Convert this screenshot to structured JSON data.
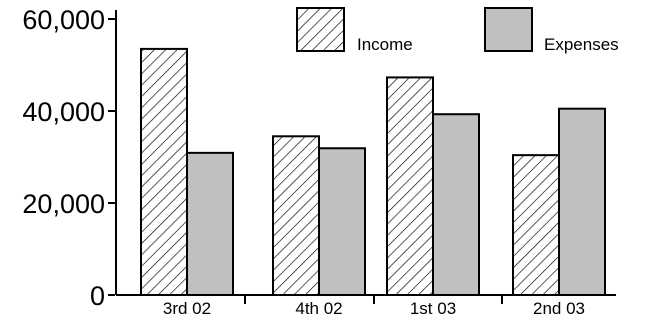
{
  "chart_data": {
    "type": "bar",
    "categories": [
      "3rd 02",
      "4th 02",
      "1st 03",
      "2nd 03"
    ],
    "series": [
      {
        "name": "Income",
        "values": [
          53500,
          34500,
          47300,
          30400
        ]
      },
      {
        "name": "Expenses",
        "values": [
          30900,
          31900,
          39300,
          40500
        ]
      }
    ],
    "title": "",
    "xlabel": "",
    "ylabel": "",
    "ylim": [
      0,
      60000
    ],
    "yticks": [
      0,
      20000,
      40000,
      60000
    ],
    "ytick_labels": [
      "0",
      "20,000",
      "40,000",
      "60,000"
    ],
    "grid": false,
    "legend_position": "top-right",
    "colors": {
      "income_hatch": "#000000",
      "income_fill": "#ffffff",
      "expenses_fill": "#bfc0c2",
      "axis": "#000000"
    }
  }
}
